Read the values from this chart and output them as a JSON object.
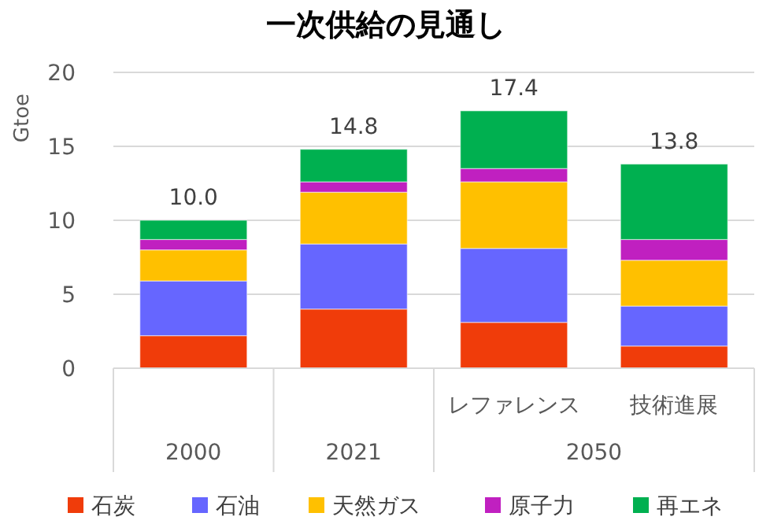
{
  "chart_data": {
    "type": "bar",
    "stacked": true,
    "title": "一次供給の見通し",
    "ylabel": "Gtoe",
    "categories": [
      "2000",
      "2021",
      "レファレンス",
      "技術進展"
    ],
    "series": [
      {
        "name": "石炭",
        "color": "#f03c0a",
        "values": [
          2.2,
          4.0,
          3.1,
          1.5
        ]
      },
      {
        "name": "石油",
        "color": "#6666ff",
        "values": [
          3.7,
          4.4,
          5.0,
          2.7
        ]
      },
      {
        "name": "天然ガス",
        "color": "#ffc000",
        "values": [
          2.1,
          3.5,
          4.5,
          3.1
        ]
      },
      {
        "name": "原子力",
        "color": "#c020c0",
        "values": [
          0.7,
          0.7,
          0.9,
          1.4
        ]
      },
      {
        "name": "再エネ",
        "color": "#00b050",
        "values": [
          1.3,
          2.2,
          3.9,
          5.1
        ]
      }
    ],
    "totals": [
      "10.0",
      "14.8",
      "17.4",
      "13.8"
    ],
    "annotations": [
      "2050"
    ],
    "ylim": [
      0,
      20
    ],
    "yticks": [
      0,
      5,
      10,
      15,
      20
    ],
    "grid": "y",
    "legend": "bottom"
  }
}
